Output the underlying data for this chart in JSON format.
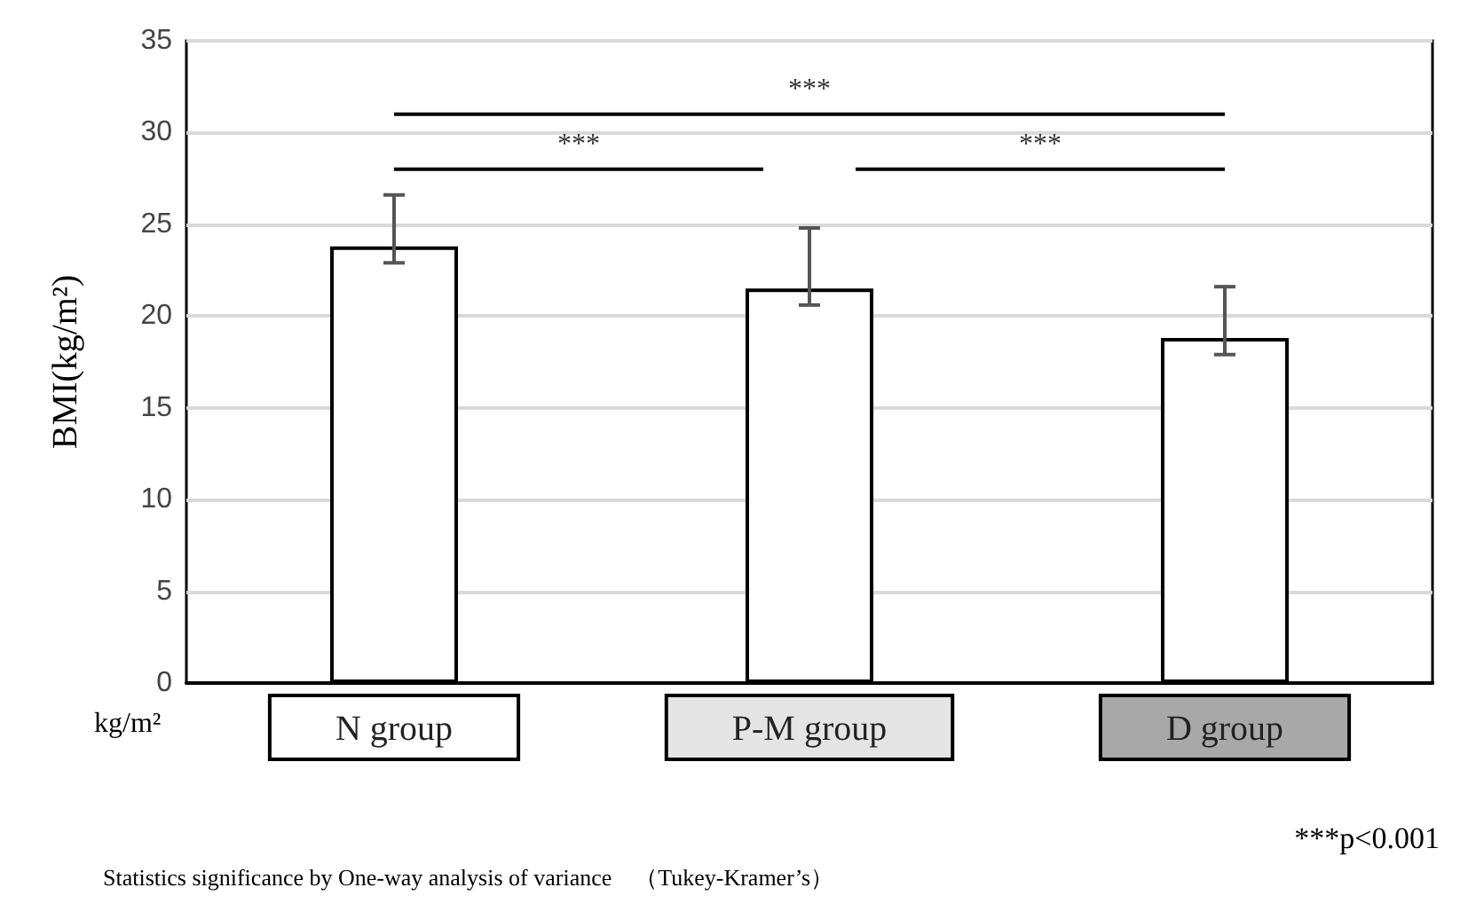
{
  "chart_data": {
    "type": "bar",
    "ylabel": "BMI(kg/m²)",
    "categories": [
      "N group",
      "P-M group",
      "D group"
    ],
    "values": [
      23.8,
      21.5,
      18.8
    ],
    "color": "#ffffff",
    "errors": [
      [
        22.9,
        26.6
      ],
      [
        20.6,
        24.8
      ],
      [
        17.9,
        21.6
      ]
    ],
    "ylim": [
      0,
      35
    ],
    "yticks": [
      0,
      5,
      10,
      15,
      20,
      25,
      30,
      35
    ],
    "grid": "y",
    "annotations": [
      "***",
      "***",
      "***",
      "kg/m²",
      "***p<0.001",
      "Statistics significance by One-way analysis of variance　（Tukey-Kramer’s）"
    ]
  }
}
